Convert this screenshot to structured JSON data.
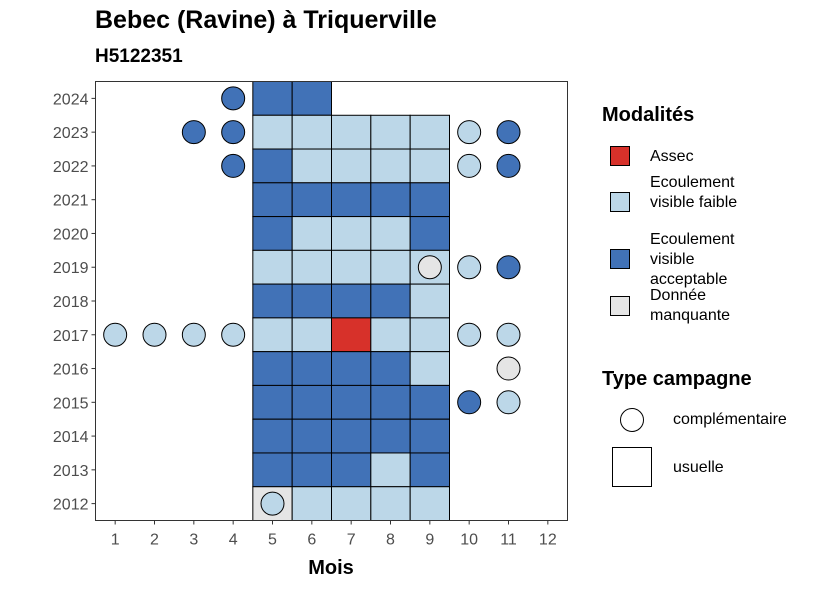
{
  "colors": {
    "assec": "#d7312a",
    "ecoulement_faible": "#bcd7e8",
    "ecoulement_acceptable": "#4172b7",
    "donnee_manquante": "#e5e5e5",
    "border": "#000000",
    "panel_border": "#333333"
  },
  "chart_data": {
    "type": "heatmap",
    "title": "Bebec (Ravine) à Triquerville",
    "subtitle": "H5122351",
    "xlabel": "Mois",
    "ylabel": "",
    "x_ticks": [
      "1",
      "2",
      "3",
      "4",
      "5",
      "6",
      "7",
      "8",
      "9",
      "10",
      "11",
      "12"
    ],
    "y_ticks": [
      "2012",
      "2013",
      "2014",
      "2015",
      "2016",
      "2017",
      "2018",
      "2019",
      "2020",
      "2021",
      "2022",
      "2023",
      "2024"
    ],
    "xlim": [
      0.5,
      12.5
    ],
    "ylim": [
      2011.5,
      2024.5
    ],
    "grid": false,
    "legend_placement": "right",
    "usuelle": [
      {
        "year": 2024,
        "month": 5,
        "mod": "ea"
      },
      {
        "year": 2024,
        "month": 6,
        "mod": "ea"
      },
      {
        "year": 2023,
        "month": 5,
        "mod": "ef"
      },
      {
        "year": 2023,
        "month": 6,
        "mod": "ef"
      },
      {
        "year": 2023,
        "month": 7,
        "mod": "ef"
      },
      {
        "year": 2023,
        "month": 8,
        "mod": "ef"
      },
      {
        "year": 2023,
        "month": 9,
        "mod": "ef"
      },
      {
        "year": 2022,
        "month": 5,
        "mod": "ea"
      },
      {
        "year": 2022,
        "month": 6,
        "mod": "ef"
      },
      {
        "year": 2022,
        "month": 7,
        "mod": "ef"
      },
      {
        "year": 2022,
        "month": 8,
        "mod": "ef"
      },
      {
        "year": 2022,
        "month": 9,
        "mod": "ef"
      },
      {
        "year": 2021,
        "month": 5,
        "mod": "ea"
      },
      {
        "year": 2021,
        "month": 6,
        "mod": "ea"
      },
      {
        "year": 2021,
        "month": 7,
        "mod": "ea"
      },
      {
        "year": 2021,
        "month": 8,
        "mod": "ea"
      },
      {
        "year": 2021,
        "month": 9,
        "mod": "ea"
      },
      {
        "year": 2020,
        "month": 5,
        "mod": "ea"
      },
      {
        "year": 2020,
        "month": 6,
        "mod": "ef"
      },
      {
        "year": 2020,
        "month": 7,
        "mod": "ef"
      },
      {
        "year": 2020,
        "month": 8,
        "mod": "ef"
      },
      {
        "year": 2020,
        "month": 9,
        "mod": "ea"
      },
      {
        "year": 2019,
        "month": 5,
        "mod": "ef"
      },
      {
        "year": 2019,
        "month": 6,
        "mod": "ef"
      },
      {
        "year": 2019,
        "month": 7,
        "mod": "ef"
      },
      {
        "year": 2019,
        "month": 8,
        "mod": "ef"
      },
      {
        "year": 2019,
        "month": 9,
        "mod": "ef"
      },
      {
        "year": 2018,
        "month": 5,
        "mod": "ea"
      },
      {
        "year": 2018,
        "month": 6,
        "mod": "ea"
      },
      {
        "year": 2018,
        "month": 7,
        "mod": "ea"
      },
      {
        "year": 2018,
        "month": 8,
        "mod": "ea"
      },
      {
        "year": 2018,
        "month": 9,
        "mod": "ef"
      },
      {
        "year": 2017,
        "month": 5,
        "mod": "ef"
      },
      {
        "year": 2017,
        "month": 6,
        "mod": "ef"
      },
      {
        "year": 2017,
        "month": 7,
        "mod": "assec"
      },
      {
        "year": 2017,
        "month": 8,
        "mod": "ef"
      },
      {
        "year": 2017,
        "month": 9,
        "mod": "ef"
      },
      {
        "year": 2016,
        "month": 5,
        "mod": "ea"
      },
      {
        "year": 2016,
        "month": 6,
        "mod": "ea"
      },
      {
        "year": 2016,
        "month": 7,
        "mod": "ea"
      },
      {
        "year": 2016,
        "month": 8,
        "mod": "ea"
      },
      {
        "year": 2016,
        "month": 9,
        "mod": "ef"
      },
      {
        "year": 2015,
        "month": 5,
        "mod": "ea"
      },
      {
        "year": 2015,
        "month": 6,
        "mod": "ea"
      },
      {
        "year": 2015,
        "month": 7,
        "mod": "ea"
      },
      {
        "year": 2015,
        "month": 8,
        "mod": "ea"
      },
      {
        "year": 2015,
        "month": 9,
        "mod": "ea"
      },
      {
        "year": 2014,
        "month": 5,
        "mod": "ea"
      },
      {
        "year": 2014,
        "month": 6,
        "mod": "ea"
      },
      {
        "year": 2014,
        "month": 7,
        "mod": "ea"
      },
      {
        "year": 2014,
        "month": 8,
        "mod": "ea"
      },
      {
        "year": 2014,
        "month": 9,
        "mod": "ea"
      },
      {
        "year": 2013,
        "month": 5,
        "mod": "ea"
      },
      {
        "year": 2013,
        "month": 6,
        "mod": "ea"
      },
      {
        "year": 2013,
        "month": 7,
        "mod": "ea"
      },
      {
        "year": 2013,
        "month": 8,
        "mod": "ef"
      },
      {
        "year": 2013,
        "month": 9,
        "mod": "ea"
      },
      {
        "year": 2012,
        "month": 5,
        "mod": "dm"
      },
      {
        "year": 2012,
        "month": 6,
        "mod": "ef"
      },
      {
        "year": 2012,
        "month": 7,
        "mod": "ef"
      },
      {
        "year": 2012,
        "month": 8,
        "mod": "ef"
      },
      {
        "year": 2012,
        "month": 9,
        "mod": "ef"
      }
    ],
    "complementaire": [
      {
        "year": 2024,
        "month": 4,
        "mod": "ea"
      },
      {
        "year": 2023,
        "month": 3,
        "mod": "ea"
      },
      {
        "year": 2023,
        "month": 4,
        "mod": "ea"
      },
      {
        "year": 2023,
        "month": 10,
        "mod": "ef"
      },
      {
        "year": 2023,
        "month": 11,
        "mod": "ea"
      },
      {
        "year": 2022,
        "month": 4,
        "mod": "ea"
      },
      {
        "year": 2022,
        "month": 10,
        "mod": "ef"
      },
      {
        "year": 2022,
        "month": 11,
        "mod": "ea"
      },
      {
        "year": 2019,
        "month": 9,
        "mod": "dm"
      },
      {
        "year": 2019,
        "month": 10,
        "mod": "ef"
      },
      {
        "year": 2019,
        "month": 11,
        "mod": "ea"
      },
      {
        "year": 2017,
        "month": 1,
        "mod": "ef"
      },
      {
        "year": 2017,
        "month": 2,
        "mod": "ef"
      },
      {
        "year": 2017,
        "month": 3,
        "mod": "ef"
      },
      {
        "year": 2017,
        "month": 4,
        "mod": "ef"
      },
      {
        "year": 2017,
        "month": 10,
        "mod": "ef"
      },
      {
        "year": 2017,
        "month": 11,
        "mod": "ef"
      },
      {
        "year": 2016,
        "month": 11,
        "mod": "dm"
      },
      {
        "year": 2015,
        "month": 10,
        "mod": "ea"
      },
      {
        "year": 2015,
        "month": 11,
        "mod": "ef"
      },
      {
        "year": 2012,
        "month": 5,
        "mod": "ef"
      }
    ]
  },
  "legend": {
    "modalites_title": "Modalités",
    "modalites": [
      {
        "key": "assec",
        "label": "Assec"
      },
      {
        "key": "ecoulement_faible",
        "label": "Ecoulement visible faible"
      },
      {
        "key": "ecoulement_acceptable",
        "label": "Ecoulement visible acceptable"
      },
      {
        "key": "donnee_manquante",
        "label": "Donnée manquante"
      }
    ],
    "type_title": "Type campagne",
    "types": [
      {
        "key": "complementaire",
        "label": "complémentaire"
      },
      {
        "key": "usuelle",
        "label": "usuelle"
      }
    ]
  }
}
